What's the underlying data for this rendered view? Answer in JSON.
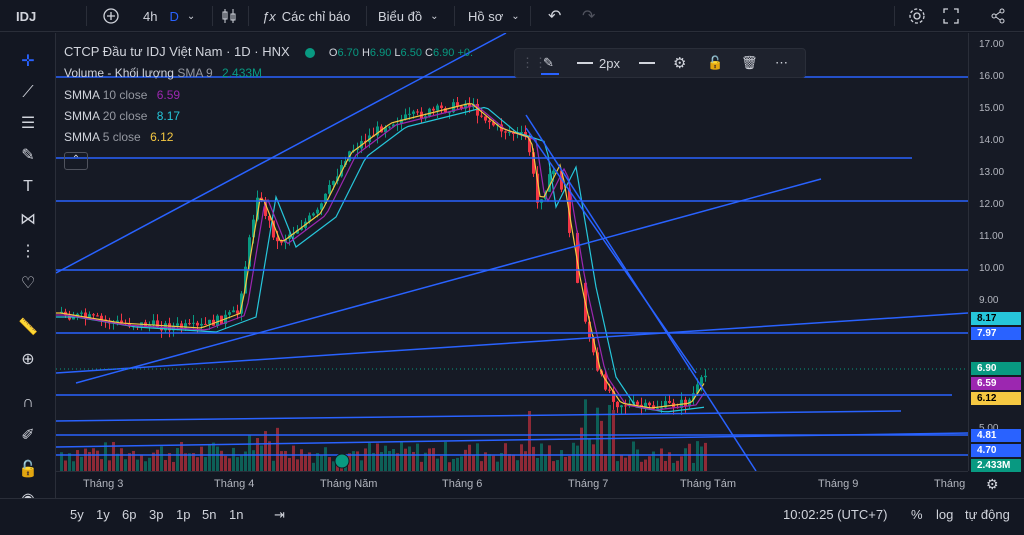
{
  "topbar": {
    "symbol": "IDJ",
    "interval": "4h",
    "interval_badge": "D",
    "indicators_label": "Các chỉ báo",
    "chart_label": "Biểu đồ",
    "profile_label": "Hồ sơ"
  },
  "chart": {
    "title": "CTCP Đầu tư IDJ Việt Nam · 1D · HNX",
    "ohlc": {
      "o_label": "O",
      "o": "6.70",
      "h_label": "H",
      "h": "6.90",
      "l_label": "L",
      "l": "6.50",
      "c_label": "C",
      "c": "6.90",
      "chg": "+0."
    },
    "volume_label": "Volume - Khối lượng",
    "volume_ma": "SMA 9",
    "volume_value": "2.433M",
    "smma": [
      {
        "label": "SMMA",
        "param": "10 close",
        "value": "6.59",
        "color": "#9c27b0"
      },
      {
        "label": "SMMA",
        "param": "20 close",
        "value": "8.17",
        "color": "#26c6da"
      },
      {
        "label": "SMMA",
        "param": "5 close",
        "value": "6.12",
        "color": "#f5c842"
      }
    ]
  },
  "float_toolbar": {
    "width_label": "2px"
  },
  "yaxis": {
    "ticks": [
      "17.00",
      "16.00",
      "15.00",
      "14.00",
      "13.00",
      "12.00",
      "11.00",
      "10.00",
      "9.00",
      "5.00"
    ],
    "labels": [
      {
        "text": "8.17",
        "bg": "#26c6da",
        "fg": "#000000"
      },
      {
        "text": "7.97",
        "bg": "#2962ff",
        "fg": "#ffffff"
      },
      {
        "text": "6.90",
        "bg": "#089981",
        "fg": "#ffffff"
      },
      {
        "text": "6.59",
        "bg": "#9c27b0",
        "fg": "#ffffff"
      },
      {
        "text": "6.12",
        "bg": "#f5c842",
        "fg": "#000000"
      },
      {
        "text": "4.81",
        "bg": "#2962ff",
        "fg": "#ffffff"
      },
      {
        "text": "4.70",
        "bg": "#2962ff",
        "fg": "#ffffff"
      },
      {
        "text": "2.433M",
        "bg": "#089981",
        "fg": "#ffffff"
      }
    ]
  },
  "xaxis": {
    "ticks": [
      "Tháng 3",
      "Tháng 4",
      "Tháng Năm",
      "Tháng 6",
      "Tháng 7",
      "Tháng Tám",
      "Tháng 9",
      "Tháng"
    ]
  },
  "bottombar": {
    "ranges": [
      "5y",
      "1y",
      "6p",
      "3p",
      "1p",
      "5n",
      "1n"
    ],
    "time": "10:02:25 (UTC+7)",
    "percent": "%",
    "log": "log",
    "auto": "tự động"
  },
  "colors": {
    "up": "#089981",
    "down": "#f23645",
    "line": "#2962ff"
  }
}
